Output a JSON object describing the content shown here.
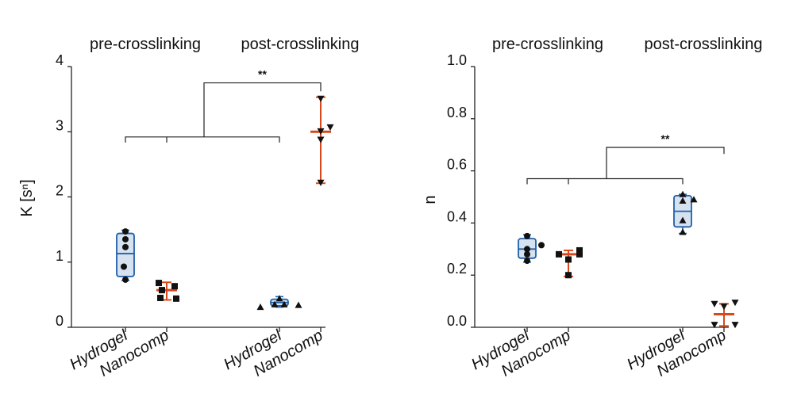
{
  "colors": {
    "hydrogel_stroke": "#1f5fa8",
    "hydrogel_fill": "#d6e2f0",
    "nanocomp_line": "#d9481c",
    "axis": "#222222",
    "marker": "#111111"
  },
  "chart_data": [
    {
      "type": "box",
      "panel": "left",
      "ylabel": "K [sⁿ]",
      "ylim": [
        0,
        4
      ],
      "yticks": [
        {
          "value": 0,
          "label": "0"
        },
        {
          "value": 1,
          "label": "1"
        },
        {
          "value": 2,
          "label": "2"
        },
        {
          "value": 3,
          "label": "3"
        },
        {
          "value": 4,
          "label": "4"
        }
      ],
      "group_labels": [
        "pre-crosslinking",
        "post-crosslinking"
      ],
      "categories": [
        "Hydrogel",
        "Nanocomp",
        "Hydrogel",
        "Nanocomp"
      ],
      "series": [
        {
          "style": "box",
          "marker": "circle",
          "whisker_low": 0.72,
          "q1": 0.78,
          "median": 1.13,
          "q3": 1.44,
          "whisker_high": 1.49,
          "points": [
            {
              "dx": 0,
              "y": 1.47
            },
            {
              "dx": 0,
              "y": 1.35
            },
            {
              "dx": 0,
              "y": 1.23
            },
            {
              "dx": -2,
              "y": 0.93
            },
            {
              "dx": 0,
              "y": 0.73
            }
          ]
        },
        {
          "style": "errorbar",
          "marker": "square",
          "low": 0.42,
          "mean": 0.57,
          "high": 0.69,
          "points": [
            {
              "dx": -10,
              "y": 0.68
            },
            {
              "dx": 10,
              "y": 0.63
            },
            {
              "dx": -6,
              "y": 0.57
            },
            {
              "dx": -8,
              "y": 0.45
            },
            {
              "dx": 12,
              "y": 0.44
            }
          ]
        },
        {
          "style": "box",
          "marker": "triangle",
          "whisker_low": 0.31,
          "q1": 0.33,
          "median": 0.38,
          "q3": 0.43,
          "whisker_high": 0.47,
          "points": [
            {
              "dx": -24,
              "y": 0.31
            },
            {
              "dx": 0,
              "y": 0.44
            },
            {
              "dx": -6,
              "y": 0.35
            },
            {
              "dx": 6,
              "y": 0.35
            },
            {
              "dx": 24,
              "y": 0.34
            }
          ]
        },
        {
          "style": "errorbar",
          "marker": "triangle-down",
          "low": 2.21,
          "mean": 3.0,
          "high": 3.53,
          "points": [
            {
              "dx": 0,
              "y": 3.51
            },
            {
              "dx": 12,
              "y": 3.07
            },
            {
              "dx": 0,
              "y": 3.01
            },
            {
              "dx": 0,
              "y": 2.88
            },
            {
              "dx": 0,
              "y": 2.22
            }
          ]
        }
      ],
      "significance": {
        "label": "**",
        "left_pair": [
          0,
          1
        ],
        "right_pair": [
          2,
          1
        ],
        "left_y": 2.92,
        "top_y": 3.75,
        "right_drop": 3.62
      }
    },
    {
      "type": "box",
      "panel": "right",
      "ylabel": "n",
      "ylim": [
        0,
        1
      ],
      "yticks": [
        {
          "value": 0,
          "label": "0.0"
        },
        {
          "value": 0.2,
          "label": "0.2"
        },
        {
          "value": 0.4,
          "label": "0.4"
        },
        {
          "value": 0.6,
          "label": "0.6"
        },
        {
          "value": 0.8,
          "label": "0.8"
        },
        {
          "value": 1.0,
          "label": "1.0"
        }
      ],
      "group_labels": [
        "pre-crosslinking",
        "post-crosslinking"
      ],
      "categories": [
        "Hydrogel",
        "Nanocomp",
        "Hydrogel",
        "Nanocomp"
      ],
      "series": [
        {
          "style": "box",
          "marker": "circle",
          "whisker_low": 0.25,
          "q1": 0.265,
          "median": 0.3,
          "q3": 0.34,
          "whisker_high": 0.355,
          "points": [
            {
              "dx": 0,
              "y": 0.35
            },
            {
              "dx": 18,
              "y": 0.315
            },
            {
              "dx": 0,
              "y": 0.3
            },
            {
              "dx": 0,
              "y": 0.28
            },
            {
              "dx": 0,
              "y": 0.255
            }
          ]
        },
        {
          "style": "errorbar",
          "marker": "square",
          "low": 0.195,
          "mean": 0.28,
          "high": 0.295,
          "points": [
            {
              "dx": -12,
              "y": 0.28
            },
            {
              "dx": 14,
              "y": 0.295
            },
            {
              "dx": 14,
              "y": 0.28
            },
            {
              "dx": 0,
              "y": 0.26
            },
            {
              "dx": 0,
              "y": 0.2
            }
          ]
        },
        {
          "style": "box",
          "marker": "triangle",
          "whisker_low": 0.36,
          "q1": 0.385,
          "median": 0.445,
          "q3": 0.505,
          "whisker_high": 0.51,
          "points": [
            {
              "dx": 0,
              "y": 0.51
            },
            {
              "dx": 0,
              "y": 0.485
            },
            {
              "dx": 14,
              "y": 0.49
            },
            {
              "dx": 0,
              "y": 0.41
            },
            {
              "dx": 0,
              "y": 0.365
            }
          ]
        },
        {
          "style": "errorbar",
          "marker": "triangle-down",
          "low": 0.005,
          "mean": 0.05,
          "high": 0.09,
          "points": [
            {
              "dx": -12,
              "y": 0.09
            },
            {
              "dx": 14,
              "y": 0.095
            },
            {
              "dx": 0,
              "y": 0.08
            },
            {
              "dx": -12,
              "y": 0.01
            },
            {
              "dx": 14,
              "y": 0.01
            }
          ]
        }
      ],
      "significance": {
        "label": "**",
        "left_pair": [
          0,
          1
        ],
        "right_pair": [
          2,
          1
        ],
        "left_y": 0.57,
        "top_y": 0.69,
        "right_drop": 0.665
      }
    }
  ]
}
